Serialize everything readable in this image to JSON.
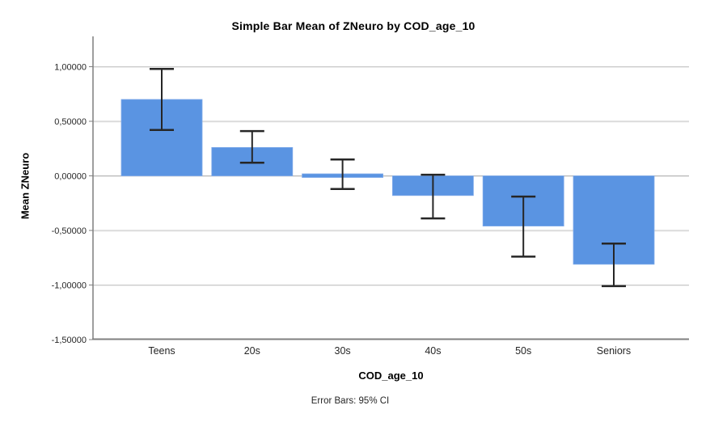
{
  "chart_data": {
    "type": "bar",
    "title": "Simple Bar Mean of ZNeuro by COD_age_10",
    "xlabel": "COD_age_10",
    "ylabel": "Mean ZNeuro",
    "footnote": "Error Bars: 95% CI",
    "categories": [
      "Teens",
      "20s",
      "30s",
      "40s",
      "50s",
      "Seniors"
    ],
    "values": [
      0.7,
      0.26,
      0.01,
      -0.18,
      -0.46,
      -0.81
    ],
    "error_bars_95ci": {
      "low": [
        0.42,
        0.12,
        -0.12,
        -0.39,
        -0.74,
        -1.01
      ],
      "high": [
        0.98,
        0.41,
        0.15,
        0.01,
        -0.19,
        -0.62
      ]
    },
    "ylim": [
      -1.5,
      1.28
    ],
    "yticks": {
      "values": [
        1.0,
        0.5,
        0.0,
        -0.5,
        -1.0,
        -1.5
      ],
      "labels": [
        "1,00000",
        "0,50000",
        "0,00000",
        "-0,50000",
        "-1,00000",
        "-1,50000"
      ]
    },
    "grid": true,
    "legend": "none",
    "bar_color": "#5A94E2",
    "bar_edge_color": "#7FAAEA",
    "error_bar_color": "#262626",
    "gridline_color": "#c9c9c9",
    "zero_line_color": "#b5b5b5",
    "axis_line_color": "#7f7f7f",
    "tick_label_color": "#262626"
  }
}
